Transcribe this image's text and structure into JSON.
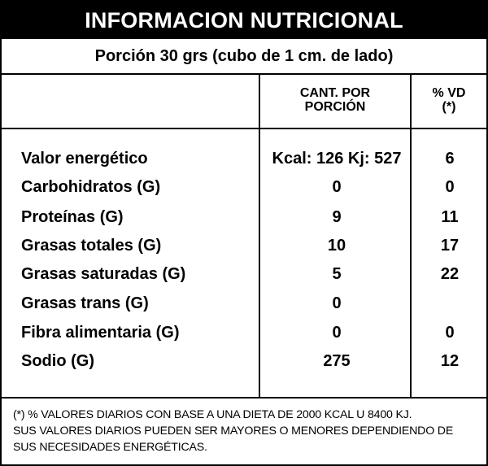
{
  "label": {
    "title": "INFORMACION NUTRICIONAL",
    "serving": "Porción 30 grs (cubo de 1 cm. de lado)",
    "col_amount_line1": "CANT. POR",
    "col_amount_line2": "PORCIÓN",
    "col_dv_line1": "% VD",
    "col_dv_line2": "(*)",
    "rows": [
      {
        "name": "Valor energético",
        "amount": "Kcal: 126 Kj: 527",
        "dv": "6"
      },
      {
        "name": "Carbohidratos (G)",
        "amount": "0",
        "dv": "0"
      },
      {
        "name": "Proteínas (G)",
        "amount": "9",
        "dv": "11"
      },
      {
        "name": "Grasas totales (G)",
        "amount": "10",
        "dv": "17"
      },
      {
        "name": "Grasas saturadas (G)",
        "amount": "5",
        "dv": "22"
      },
      {
        "name": "Grasas trans (G)",
        "amount": "0",
        "dv": ""
      },
      {
        "name": "Fibra alimentaria (G)",
        "amount": "0",
        "dv": "0"
      },
      {
        "name": "Sodio (G)",
        "amount": "275",
        "dv": "12"
      }
    ],
    "footnote_line1": "(*) % VALORES DIARIOS CON BASE A UNA DIETA DE 2000 KCAL U 8400 KJ.",
    "footnote_line2": "SUS VALORES DIARIOS PUEDEN SER MAYORES O MENORES DEPENDIENDO DE",
    "footnote_line3": "SUS NECESIDADES ENERGÉTICAS."
  }
}
